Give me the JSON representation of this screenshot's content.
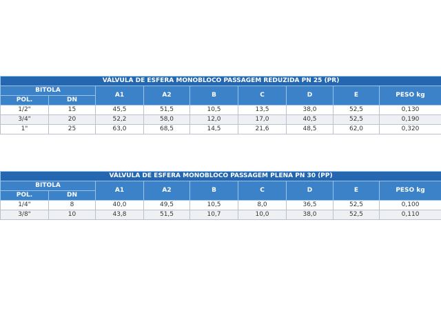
{
  "tables": [
    {
      "title": "VÁLVULA DE ESFERA MONOBLOCO PASSAGEM REDUZIDA PN 25 (PR)",
      "group_header": "BITOLA",
      "group_columns": [
        "POL.",
        "DN"
      ],
      "columns": [
        "A1",
        "A2",
        "B",
        "C",
        "D",
        "E",
        "PESO kg"
      ],
      "rows": [
        [
          "1/2\"",
          "15",
          "45,5",
          "51,5",
          "10,5",
          "13,5",
          "38,0",
          "52,5",
          "0,130"
        ],
        [
          "3/4\"",
          "20",
          "52,2",
          "58,0",
          "12,0",
          "17,0",
          "40,5",
          "52,5",
          "0,190"
        ],
        [
          "1\"",
          "25",
          "63,0",
          "68,5",
          "14,5",
          "21,6",
          "48,5",
          "62,0",
          "0,320"
        ]
      ]
    },
    {
      "title": "VÁLVULA DE ESFERA MONOBLOCO PASSAGEM PLENA PN 30 (PP)",
      "group_header": "BITOLA",
      "group_columns": [
        "POL.",
        "DN"
      ],
      "columns": [
        "A1",
        "A2",
        "B",
        "C",
        "D",
        "E",
        "PESO kg"
      ],
      "rows": [
        [
          "1/4\"",
          "8",
          "40,0",
          "49,5",
          "10,5",
          "8,0",
          "36,5",
          "52,5",
          "0,100"
        ],
        [
          "3/8\"",
          "10",
          "43,8",
          "51,5",
          "10,7",
          "10,0",
          "38,0",
          "52,5",
          "0,110"
        ]
      ]
    }
  ]
}
